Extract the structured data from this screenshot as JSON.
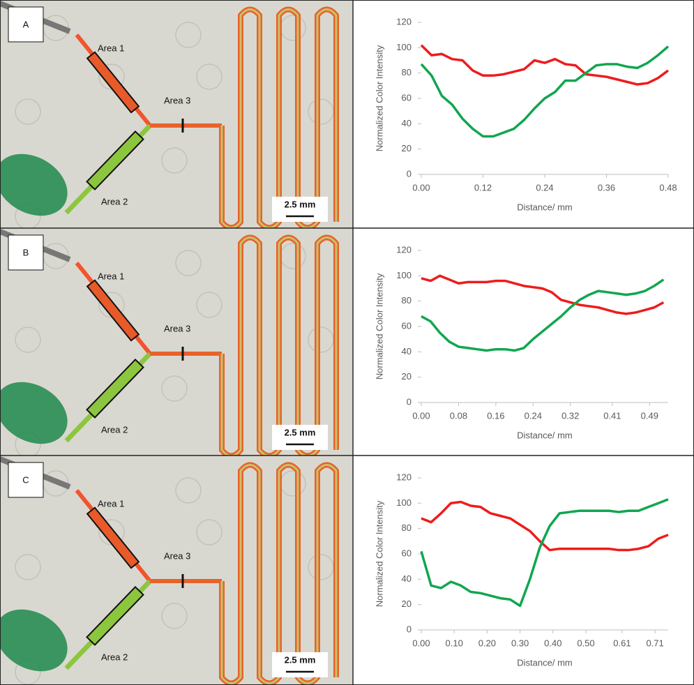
{
  "panels": [
    {
      "letter": "A",
      "area1": "Area 1",
      "area2": "Area 2",
      "area3": "Area 3",
      "scale_bar": "2.5 mm"
    },
    {
      "letter": "B",
      "area1": "Area 1",
      "area2": "Area 2",
      "area3": "Area 3",
      "scale_bar": "2.5 mm"
    },
    {
      "letter": "C",
      "area1": "Area 1",
      "area2": "Area 2",
      "area3": "Area 3",
      "scale_bar": "2.5 mm"
    }
  ],
  "chart_data": [
    {
      "type": "line",
      "x_label": "Distance/ mm",
      "y_label": "Normalized Color Intensity",
      "x": [
        0,
        0.02,
        0.04,
        0.06,
        0.08,
        0.1,
        0.12,
        0.14,
        0.16,
        0.18,
        0.2,
        0.22,
        0.24,
        0.26,
        0.28,
        0.3,
        0.32,
        0.34,
        0.36,
        0.38,
        0.4,
        0.42,
        0.44,
        0.46,
        0.48
      ],
      "series": [
        {
          "color": "#ee1c1c",
          "values": [
            102,
            94,
            95,
            91,
            90,
            82,
            78,
            78,
            79,
            81,
            83,
            90,
            88,
            91,
            87,
            86,
            79,
            78,
            77,
            75,
            73,
            71,
            72,
            76,
            82
          ]
        },
        {
          "color": "#11a64f",
          "values": [
            87,
            78,
            62,
            55,
            44,
            36,
            30,
            30,
            33,
            36,
            43,
            52,
            60,
            65,
            74,
            74,
            80,
            86,
            87,
            87,
            85,
            84,
            88,
            94,
            101
          ]
        }
      ],
      "xlim": [
        0,
        0.48
      ],
      "xticks": [
        {
          "value": 0,
          "label": "0.00"
        },
        0.12,
        0.24,
        0.36,
        0.48
      ],
      "ylim": [
        0,
        120
      ],
      "yticks": [
        0,
        20,
        40,
        60,
        80,
        100,
        120
      ]
    },
    {
      "type": "line",
      "x_label": "Distance/ mm",
      "y_label": "Normalized Color Intensity",
      "x": [
        0,
        0.02,
        0.04,
        0.06,
        0.08,
        0.1,
        0.12,
        0.14,
        0.16,
        0.18,
        0.2,
        0.22,
        0.24,
        0.26,
        0.28,
        0.3,
        0.32,
        0.34,
        0.36,
        0.38,
        0.4,
        0.42,
        0.44,
        0.46,
        0.48,
        0.5,
        0.52
      ],
      "series": [
        {
          "color": "#ee1c1c",
          "values": [
            98,
            96,
            100,
            97,
            94,
            95,
            95,
            95,
            96,
            96,
            94,
            92,
            91,
            90,
            87,
            81,
            79,
            77,
            76,
            75,
            73,
            71,
            70,
            71,
            73,
            75,
            79
          ]
        },
        {
          "color": "#11a64f",
          "values": [
            68,
            64,
            55,
            48,
            44,
            43,
            42,
            41,
            42,
            42,
            41,
            43,
            50,
            56,
            62,
            68,
            75,
            81,
            85,
            88,
            87,
            86,
            85,
            86,
            88,
            92,
            97
          ]
        }
      ],
      "xlim": [
        0,
        0.53
      ],
      "xticks": [
        {
          "value": 0,
          "label": "0.00"
        },
        0.08,
        0.16,
        0.24,
        0.32,
        0.41,
        0.49
      ],
      "ylim": [
        0,
        120
      ],
      "yticks": [
        0,
        20,
        40,
        60,
        80,
        100,
        120
      ]
    },
    {
      "type": "line",
      "x_label": "Distance/ mm",
      "y_label": "Normalized Color Intensity",
      "x": [
        0,
        0.03,
        0.06,
        0.09,
        0.12,
        0.15,
        0.18,
        0.21,
        0.24,
        0.27,
        0.3,
        0.33,
        0.36,
        0.39,
        0.42,
        0.45,
        0.48,
        0.51,
        0.54,
        0.57,
        0.6,
        0.63,
        0.66,
        0.69,
        0.72,
        0.75
      ],
      "series": [
        {
          "color": "#ee1c1c",
          "values": [
            88,
            85,
            92,
            100,
            101,
            98,
            97,
            92,
            90,
            88,
            83,
            78,
            70,
            63,
            64,
            64,
            64,
            64,
            64,
            64,
            63,
            63,
            64,
            66,
            72,
            75
          ]
        },
        {
          "color": "#11a64f",
          "values": [
            62,
            35,
            33,
            38,
            35,
            30,
            29,
            27,
            25,
            24,
            19,
            40,
            65,
            82,
            92,
            93,
            94,
            94,
            94,
            94,
            93,
            94,
            94,
            97,
            100,
            103
          ]
        }
      ],
      "xlim": [
        0,
        0.75
      ],
      "xticks": [
        {
          "value": 0,
          "label": "0.00"
        },
        {
          "value": 0.1,
          "label": "0.10"
        },
        {
          "value": 0.2,
          "label": "0.20"
        },
        {
          "value": 0.3,
          "label": "0.30"
        },
        {
          "value": 0.4,
          "label": "0.40"
        },
        {
          "value": 0.5,
          "label": "0.50"
        },
        0.61,
        0.71
      ],
      "ylim": [
        0,
        120
      ],
      "yticks": [
        0,
        20,
        40,
        60,
        80,
        100,
        120
      ]
    }
  ]
}
